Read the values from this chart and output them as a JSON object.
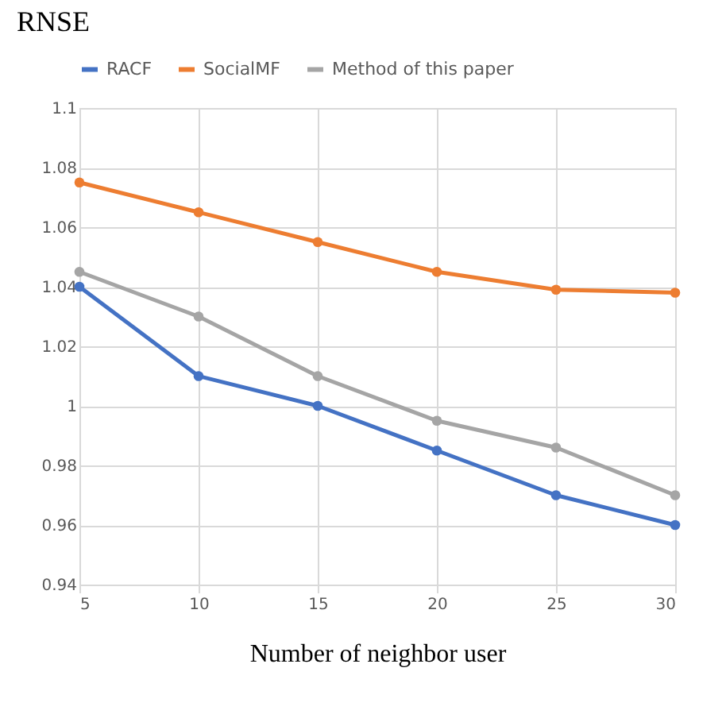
{
  "chart_data": {
    "type": "line",
    "xlabel": "Number of neighbor user",
    "ylabel": "RNSE",
    "x": [
      5,
      10,
      15,
      20,
      25,
      30
    ],
    "series": [
      {
        "name": "RACF",
        "color": "#4472c4",
        "values": [
          1.04,
          1.01,
          1.0,
          0.985,
          0.97,
          0.96
        ]
      },
      {
        "name": "SocialMF",
        "color": "#ed7d31",
        "values": [
          1.075,
          1.065,
          1.055,
          1.045,
          1.039,
          1.038
        ]
      },
      {
        "name": "Method of this paper",
        "color": "#a5a5a5",
        "values": [
          1.045,
          1.03,
          1.01,
          0.995,
          0.986,
          0.97
        ]
      }
    ],
    "xlim": [
      5,
      30
    ],
    "xticks": [
      5,
      10,
      15,
      20,
      25,
      30
    ],
    "ylim": [
      0.94,
      1.1
    ],
    "yticks": [
      0.94,
      0.96,
      0.98,
      1,
      1.02,
      1.04,
      1.06,
      1.08,
      1.1
    ],
    "grid": true,
    "legend": "top",
    "marker": "circle",
    "line_style": "solid"
  }
}
